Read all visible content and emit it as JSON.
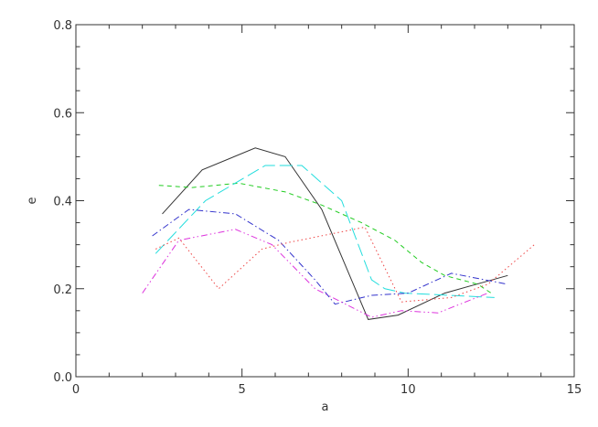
{
  "chart_data": {
    "type": "line",
    "title": "",
    "xlabel": "a",
    "ylabel": "e",
    "xlim": [
      0,
      15
    ],
    "ylim": [
      0,
      0.8
    ],
    "grid": false,
    "x_ticks": [
      0,
      5,
      10,
      15
    ],
    "x_tick_labels": [
      "0",
      "5",
      "10",
      "15"
    ],
    "x_minor_step": 1,
    "y_ticks": [
      0,
      0.2,
      0.4,
      0.6,
      0.8
    ],
    "y_tick_labels": [
      "0.0",
      "0.2",
      "0.4",
      "0.6",
      "0.8"
    ],
    "y_minor_step": 0.05,
    "series": [
      {
        "color": "#333333",
        "dash": "solid",
        "points": [
          [
            2.6,
            0.37
          ],
          [
            3.8,
            0.47
          ],
          [
            5.4,
            0.52
          ],
          [
            6.3,
            0.5
          ],
          [
            7.4,
            0.38
          ],
          [
            8.8,
            0.13
          ],
          [
            9.7,
            0.14
          ],
          [
            11.1,
            0.19
          ],
          [
            13.0,
            0.23
          ]
        ]
      },
      {
        "color": "#22cc22",
        "dash": "dashed",
        "points": [
          [
            2.5,
            0.435
          ],
          [
            3.5,
            0.43
          ],
          [
            4.9,
            0.44
          ],
          [
            6.3,
            0.42
          ],
          [
            7.4,
            0.39
          ],
          [
            8.6,
            0.35
          ],
          [
            9.6,
            0.31
          ],
          [
            10.4,
            0.26
          ],
          [
            11.1,
            0.23
          ],
          [
            12.1,
            0.21
          ],
          [
            12.5,
            0.19
          ]
        ]
      },
      {
        "color": "#22dddd",
        "dash": "long-dash",
        "points": [
          [
            2.4,
            0.28
          ],
          [
            3.9,
            0.4
          ],
          [
            5.7,
            0.48
          ],
          [
            6.8,
            0.48
          ],
          [
            8.0,
            0.4
          ],
          [
            8.9,
            0.22
          ],
          [
            9.3,
            0.2
          ],
          [
            9.9,
            0.19
          ],
          [
            12.6,
            0.18
          ]
        ]
      },
      {
        "color": "#3333cc",
        "dash": "dash-dot",
        "points": [
          [
            2.3,
            0.32
          ],
          [
            3.4,
            0.38
          ],
          [
            4.8,
            0.37
          ],
          [
            6.1,
            0.31
          ],
          [
            7.2,
            0.22
          ],
          [
            7.8,
            0.165
          ],
          [
            8.9,
            0.185
          ],
          [
            10.0,
            0.19
          ],
          [
            11.3,
            0.235
          ],
          [
            13.0,
            0.21
          ]
        ]
      },
      {
        "color": "#dd33dd",
        "dash": "dash-dot-dot",
        "points": [
          [
            2.0,
            0.19
          ],
          [
            3.1,
            0.31
          ],
          [
            4.8,
            0.335
          ],
          [
            5.9,
            0.3
          ],
          [
            7.2,
            0.2
          ],
          [
            8.9,
            0.135
          ],
          [
            9.8,
            0.15
          ],
          [
            10.9,
            0.145
          ],
          [
            12.4,
            0.19
          ]
        ]
      },
      {
        "color": "#ee4444",
        "dash": "dotted",
        "points": [
          [
            2.4,
            0.29
          ],
          [
            3.1,
            0.315
          ],
          [
            4.3,
            0.2
          ],
          [
            5.6,
            0.29
          ],
          [
            6.4,
            0.305
          ],
          [
            8.7,
            0.34
          ],
          [
            9.8,
            0.17
          ],
          [
            11.3,
            0.18
          ],
          [
            12.4,
            0.21
          ],
          [
            13.8,
            0.3
          ]
        ]
      }
    ]
  }
}
